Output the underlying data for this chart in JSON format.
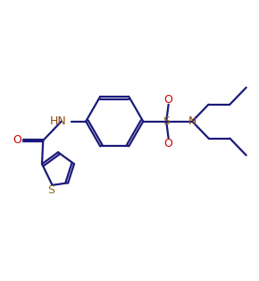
{
  "bg_color": "#ffffff",
  "line_color": "#1a1a7a",
  "heteroatom_color": "#8b4513",
  "oxygen_color": "#cc0000",
  "sulfur_s_color": "#8b6914",
  "bond_lw": 1.6,
  "figsize": [
    2.9,
    3.14
  ],
  "dpi": 100,
  "xlim": [
    0,
    9.5
  ],
  "ylim": [
    0,
    10.2
  ]
}
